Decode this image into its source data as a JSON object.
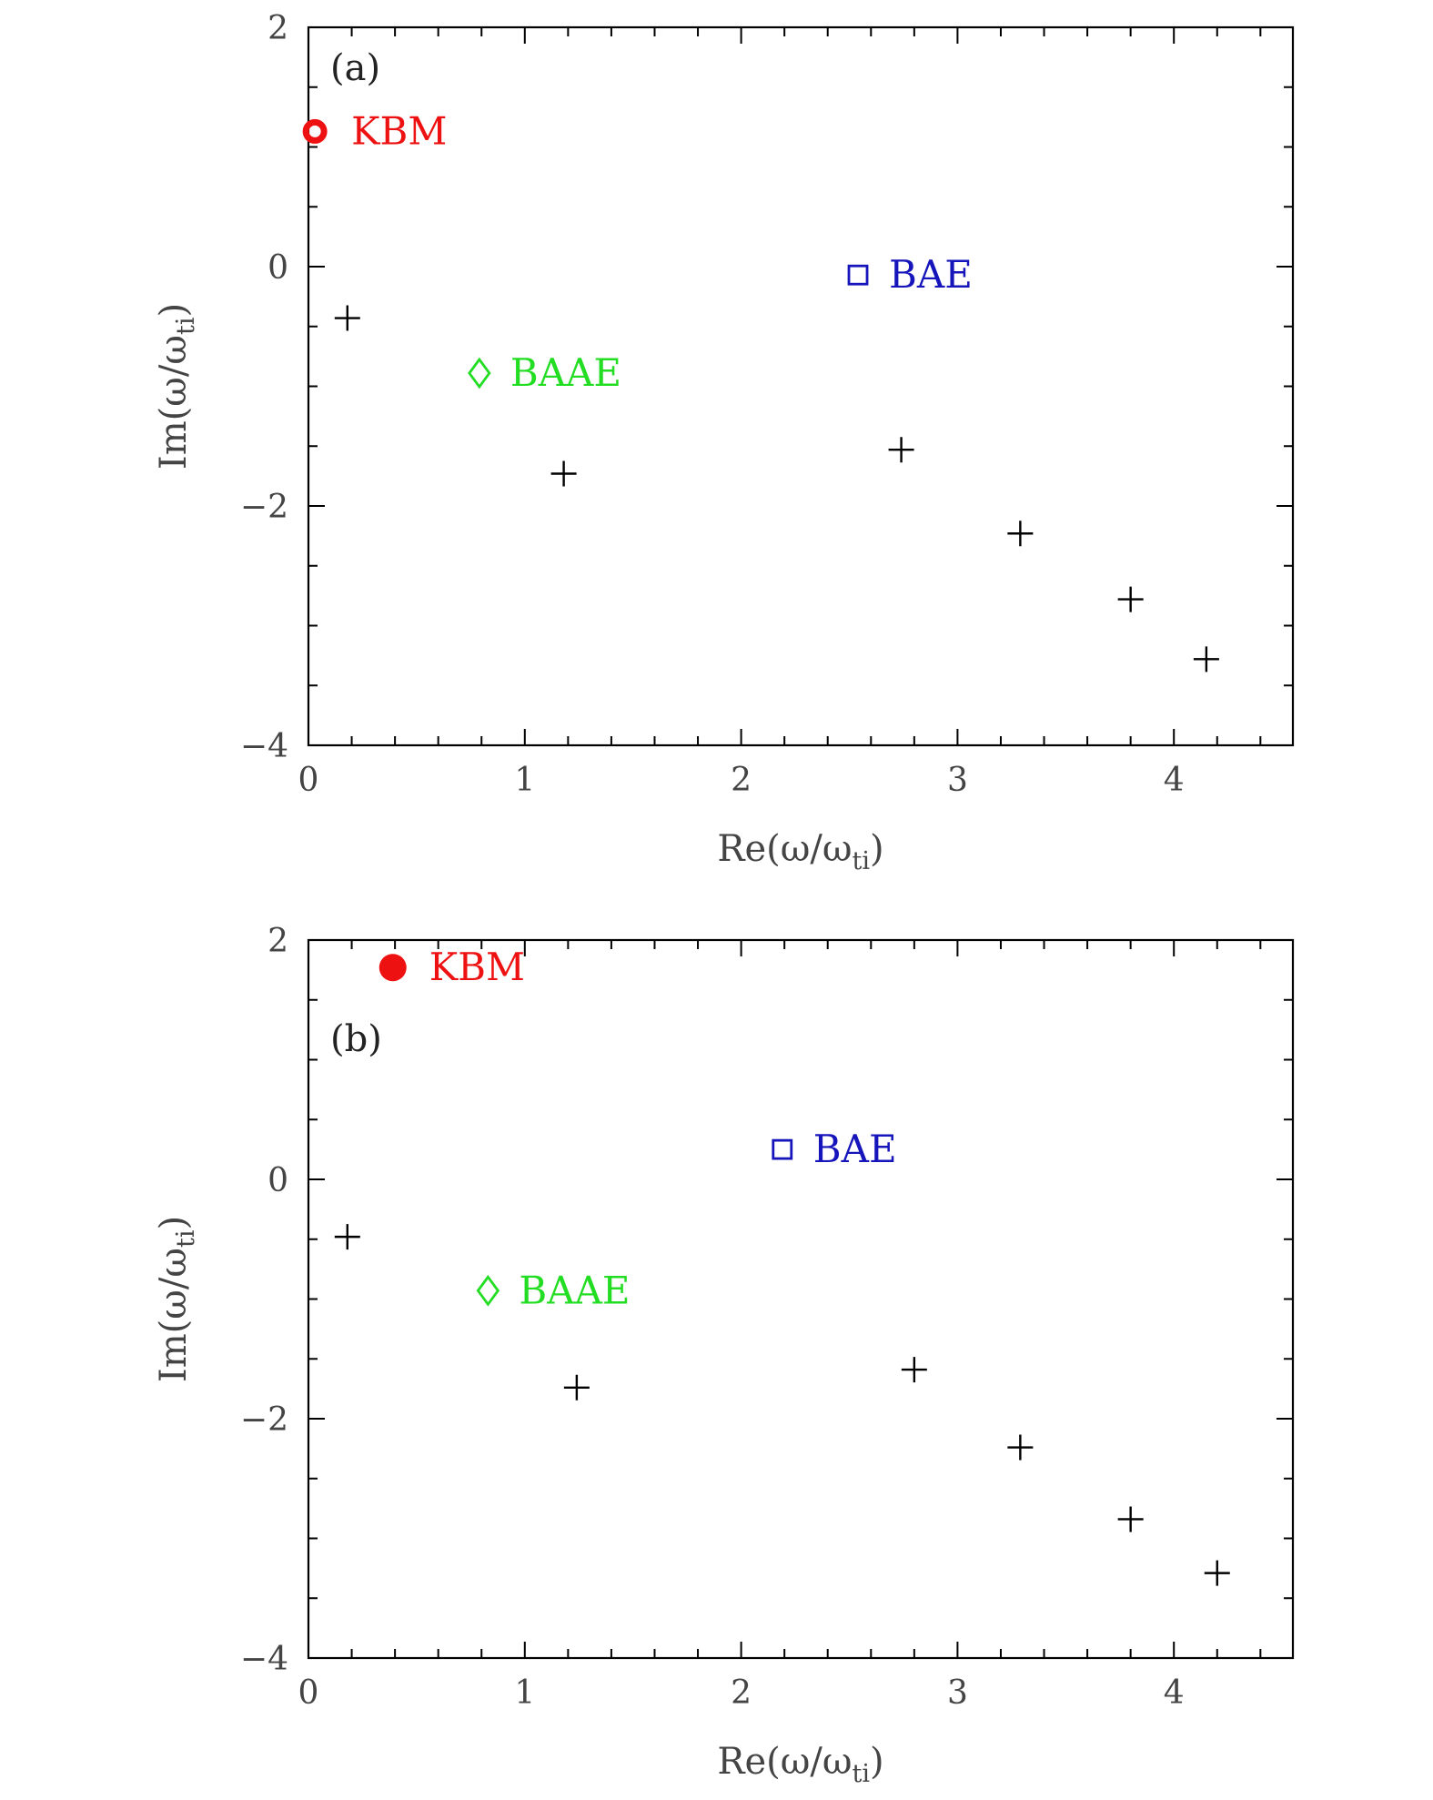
{
  "chart_data": [
    {
      "type": "scatter",
      "panel_label": "(a)",
      "xlabel": {
        "main": "Re(ω/ω",
        "sub": "ti",
        "close": ")"
      },
      "ylabel": {
        "main": "Im(ω/ω",
        "sub": "ti",
        "close": ")"
      },
      "xlim": [
        0,
        4.55
      ],
      "ylim": [
        -4,
        2
      ],
      "xticks": [
        0,
        1,
        2,
        3,
        4
      ],
      "yticks": [
        -4,
        -2,
        0,
        2
      ],
      "x_tick_labels": [
        "0",
        "1",
        "2",
        "3",
        "4"
      ],
      "y_tick_labels": [
        "−4",
        "−2",
        "0",
        "2"
      ],
      "grid": false,
      "modes": [
        {
          "name": "KBM",
          "x": 0.03,
          "y": 1.13,
          "marker": "open-circle",
          "color": "#ee1111"
        },
        {
          "name": "BAE",
          "x": 2.54,
          "y": -0.07,
          "marker": "open-square",
          "color": "#1515bb"
        },
        {
          "name": "BAAE",
          "x": 0.79,
          "y": -0.89,
          "marker": "open-diamond",
          "color": "#22dd22"
        }
      ],
      "continuum": {
        "marker": "plus",
        "color": "#000000",
        "x": [
          0.18,
          1.18,
          2.74,
          3.29,
          3.8,
          4.15
        ],
        "y": [
          -0.43,
          -1.73,
          -1.53,
          -2.23,
          -2.78,
          -3.28
        ]
      }
    },
    {
      "type": "scatter",
      "panel_label": "(b)",
      "xlabel": {
        "main": "Re(ω/ω",
        "sub": "ti",
        "close": ")"
      },
      "ylabel": {
        "main": "Im(ω/ω",
        "sub": "ti",
        "close": ")"
      },
      "xlim": [
        0,
        4.55
      ],
      "ylim": [
        -4,
        2
      ],
      "xticks": [
        0,
        1,
        2,
        3,
        4
      ],
      "yticks": [
        -4,
        -2,
        0,
        2
      ],
      "x_tick_labels": [
        "0",
        "1",
        "2",
        "3",
        "4"
      ],
      "y_tick_labels": [
        "−4",
        "−2",
        "0",
        "2"
      ],
      "grid": false,
      "modes": [
        {
          "name": "KBM",
          "x": 0.39,
          "y": 1.77,
          "marker": "filled-circle",
          "color": "#ee1111"
        },
        {
          "name": "BAE",
          "x": 2.19,
          "y": 0.25,
          "marker": "open-square",
          "color": "#1515bb"
        },
        {
          "name": "BAAE",
          "x": 0.83,
          "y": -0.93,
          "marker": "open-diamond",
          "color": "#22dd22"
        }
      ],
      "continuum": {
        "marker": "plus",
        "color": "#000000",
        "x": [
          0.18,
          1.24,
          2.8,
          3.29,
          3.8,
          4.2
        ],
        "y": [
          -0.48,
          -1.74,
          -1.59,
          -2.24,
          -2.84,
          -3.29
        ]
      }
    }
  ]
}
